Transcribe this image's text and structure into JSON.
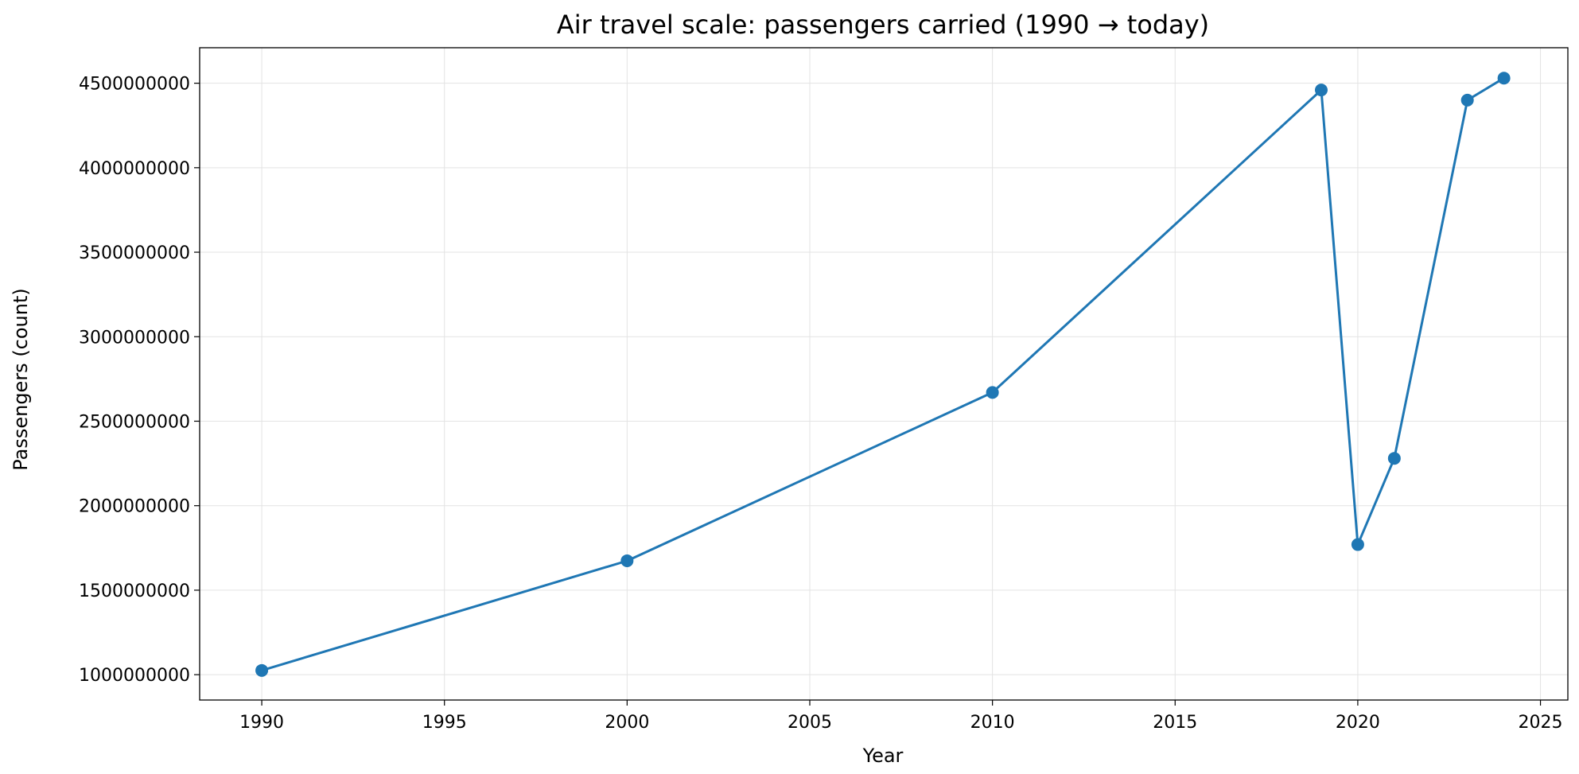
{
  "chart_data": {
    "type": "line",
    "title": "Air travel scale: passengers carried (1990 → today)",
    "xlabel": "Year",
    "ylabel": "Passengers (count)",
    "xlim": [
      1988.3,
      2025.75
    ],
    "ylim": [
      850000000,
      4710000000
    ],
    "xticks": [
      1990,
      1995,
      2000,
      2005,
      2010,
      2015,
      2020,
      2025
    ],
    "yticks": [
      1000000000,
      1500000000,
      2000000000,
      2500000000,
      3000000000,
      3500000000,
      4000000000,
      4500000000
    ],
    "grid": true,
    "color": "#1f77b4",
    "x": [
      1990,
      2000,
      2010,
      2019,
      2020,
      2021,
      2023,
      2024
    ],
    "y": [
      1025000000,
      1674000000,
      2670000000,
      4460000000,
      1770000000,
      2280000000,
      4400000000,
      4530000000
    ]
  }
}
